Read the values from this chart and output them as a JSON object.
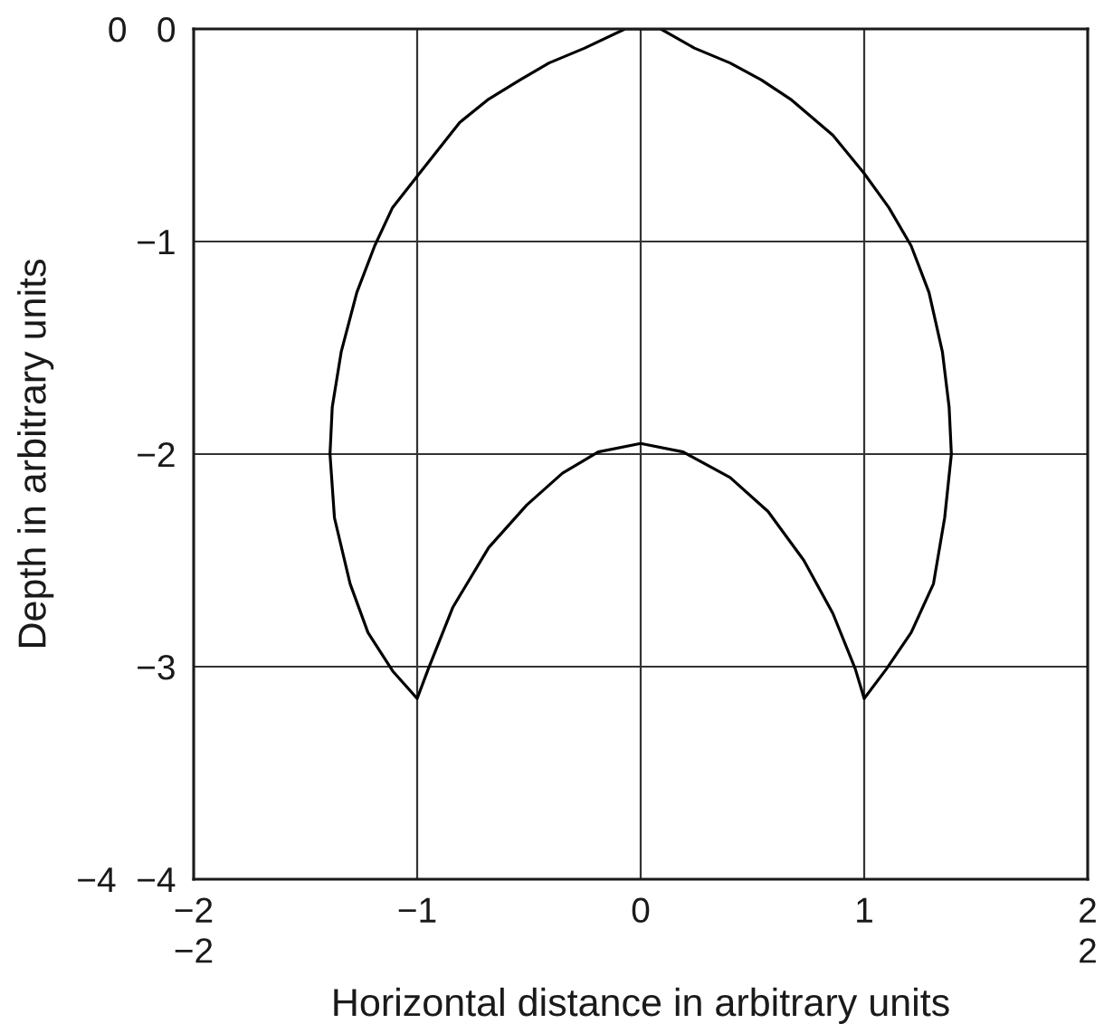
{
  "chart_data": {
    "type": "line",
    "xlabel": "Horizontal distance in arbitrary units",
    "ylabel": "Depth in arbitrary units",
    "xlim": [
      -2,
      2
    ],
    "ylim": [
      -4,
      0
    ],
    "xticks": [
      {
        "value": -2,
        "label": "−2\n−2"
      },
      {
        "value": -1,
        "label": "−1"
      },
      0,
      1,
      {
        "value": 2,
        "label": "2\n2"
      }
    ],
    "yticks": [
      {
        "value": -4,
        "label": "−4  −4"
      },
      {
        "value": -3,
        "label": "−3"
      },
      {
        "value": -2,
        "label": "−2"
      },
      {
        "value": -1,
        "label": "−1"
      },
      {
        "value": 0,
        "label": "0   0"
      }
    ],
    "grid": true,
    "series": [
      {
        "color": "#000000",
        "x": [
          -1.0,
          -1.11,
          -1.22,
          -1.3,
          -1.37,
          -1.39,
          -1.38,
          -1.34,
          -1.27,
          -1.19,
          -1.11,
          -0.99,
          -0.81,
          -0.68,
          -0.54,
          -0.41,
          -0.25,
          -0.07,
          0.09,
          0.24,
          0.4,
          0.54,
          0.67,
          0.86,
          1.0,
          1.11,
          1.21,
          1.29,
          1.35,
          1.38,
          1.39,
          1.36,
          1.31,
          1.21,
          1.1,
          1.0,
          null,
          -1.0,
          -0.95,
          -0.84,
          -0.68,
          -0.51,
          -0.35,
          -0.19,
          0.0,
          0.19,
          0.4,
          0.57,
          0.73,
          0.86,
          0.96,
          1.0
        ],
        "values": [
          -3.15,
          -3.02,
          -2.84,
          -2.61,
          -2.3,
          -2.0,
          -1.78,
          -1.52,
          -1.24,
          -1.02,
          -0.84,
          -0.68,
          -0.44,
          -0.33,
          -0.24,
          -0.16,
          -0.09,
          0.0,
          0.0,
          -0.09,
          -0.16,
          -0.24,
          -0.33,
          -0.5,
          -0.68,
          -0.84,
          -1.02,
          -1.24,
          -1.52,
          -1.78,
          -2.0,
          -2.3,
          -2.61,
          -2.84,
          -3.01,
          -3.15,
          null,
          -3.15,
          -3.01,
          -2.72,
          -2.44,
          -2.24,
          -2.09,
          -1.99,
          -1.95,
          -1.99,
          -2.11,
          -2.27,
          -2.5,
          -2.75,
          -3.01,
          -3.15
        ]
      }
    ]
  }
}
